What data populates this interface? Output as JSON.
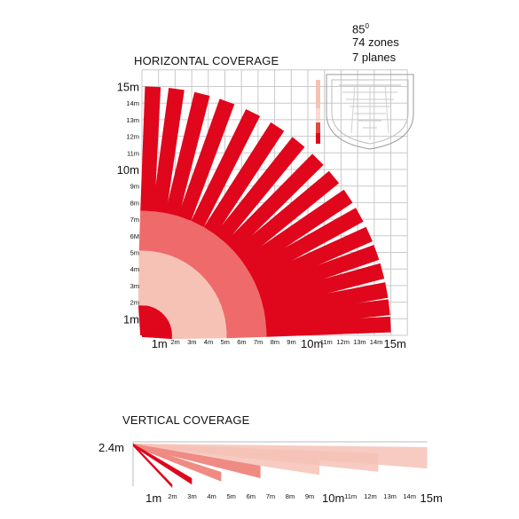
{
  "specs": {
    "angle_base": "85",
    "angle_sup": "0",
    "zones": "74 zones",
    "planes": "7 planes"
  },
  "horizontal": {
    "title": "HORIZONTAL COVERAGE",
    "y_labels": [
      {
        "v": 1,
        "text": "1m",
        "big": true
      },
      {
        "v": 2,
        "text": "2m",
        "big": false
      },
      {
        "v": 3,
        "text": "3m",
        "big": false
      },
      {
        "v": 4,
        "text": "4m",
        "big": false
      },
      {
        "v": 5,
        "text": "5m",
        "big": false
      },
      {
        "v": 6,
        "text": "6M",
        "big": false
      },
      {
        "v": 7,
        "text": "7m",
        "big": false
      },
      {
        "v": 8,
        "text": "8m",
        "big": false
      },
      {
        "v": 9,
        "text": "9m",
        "big": false
      },
      {
        "v": 10,
        "text": "10m",
        "big": true
      },
      {
        "v": 11,
        "text": "11m",
        "big": false
      },
      {
        "v": 12,
        "text": "12m",
        "big": false
      },
      {
        "v": 13,
        "text": "13m",
        "big": false
      },
      {
        "v": 14,
        "text": "14m",
        "big": false
      },
      {
        "v": 15,
        "text": "15m",
        "big": true
      }
    ],
    "x_labels": [
      {
        "v": 1,
        "text": "1m",
        "big": true
      },
      {
        "v": 2,
        "text": "2m",
        "big": false
      },
      {
        "v": 3,
        "text": "3m",
        "big": false
      },
      {
        "v": 4,
        "text": "4m",
        "big": false
      },
      {
        "v": 5,
        "text": "5m",
        "big": false
      },
      {
        "v": 6,
        "text": "6m",
        "big": false
      },
      {
        "v": 7,
        "text": "7m",
        "big": false
      },
      {
        "v": 8,
        "text": "8m",
        "big": false
      },
      {
        "v": 9,
        "text": "9m",
        "big": false
      },
      {
        "v": 10,
        "text": "10m",
        "big": true
      },
      {
        "v": 11,
        "text": "11m",
        "big": false
      },
      {
        "v": 12,
        "text": "12m",
        "big": false
      },
      {
        "v": 13,
        "text": "13m",
        "big": false
      },
      {
        "v": 14,
        "text": "14m",
        "big": false
      },
      {
        "v": 15,
        "text": "15m",
        "big": true
      }
    ],
    "beam_angles_deg": [
      2.5,
      6.5,
      10.5,
      15,
      19.5,
      24,
      29,
      34,
      39.5,
      45,
      51,
      57,
      63.5,
      70,
      76,
      82,
      87.5
    ],
    "beam_range_m": 15,
    "colors": {
      "far": "#e0061b",
      "mid": "#ef6a6a",
      "near": "#f6c2b6",
      "grid": "#c9c9c9"
    }
  },
  "vertical": {
    "title": "VERTICAL COVERAGE",
    "height_label": "2.4m",
    "x_labels": [
      {
        "v": 1,
        "text": "1m",
        "big": true
      },
      {
        "v": 2,
        "text": "2m",
        "big": false
      },
      {
        "v": 3,
        "text": "3m",
        "big": false
      },
      {
        "v": 4,
        "text": "4m",
        "big": false
      },
      {
        "v": 5,
        "text": "5m",
        "big": false
      },
      {
        "v": 6,
        "text": "6m",
        "big": false
      },
      {
        "v": 7,
        "text": "7m",
        "big": false
      },
      {
        "v": 8,
        "text": "8m",
        "big": false
      },
      {
        "v": 9,
        "text": "9m",
        "big": false
      },
      {
        "v": 10,
        "text": "10m",
        "big": true
      },
      {
        "v": 11,
        "text": "11m",
        "big": false
      },
      {
        "v": 12,
        "text": "12m",
        "big": false
      },
      {
        "v": 13,
        "text": "13m",
        "big": false
      },
      {
        "v": 14,
        "text": "14m",
        "big": false
      },
      {
        "v": 15,
        "text": "15m",
        "big": true
      }
    ],
    "plane_ranges_m": [
      2,
      3,
      4.5,
      6.5,
      9.5,
      12.5,
      15
    ],
    "colors": {
      "dark": "#e0061b",
      "light": "#f6c2b6"
    }
  }
}
